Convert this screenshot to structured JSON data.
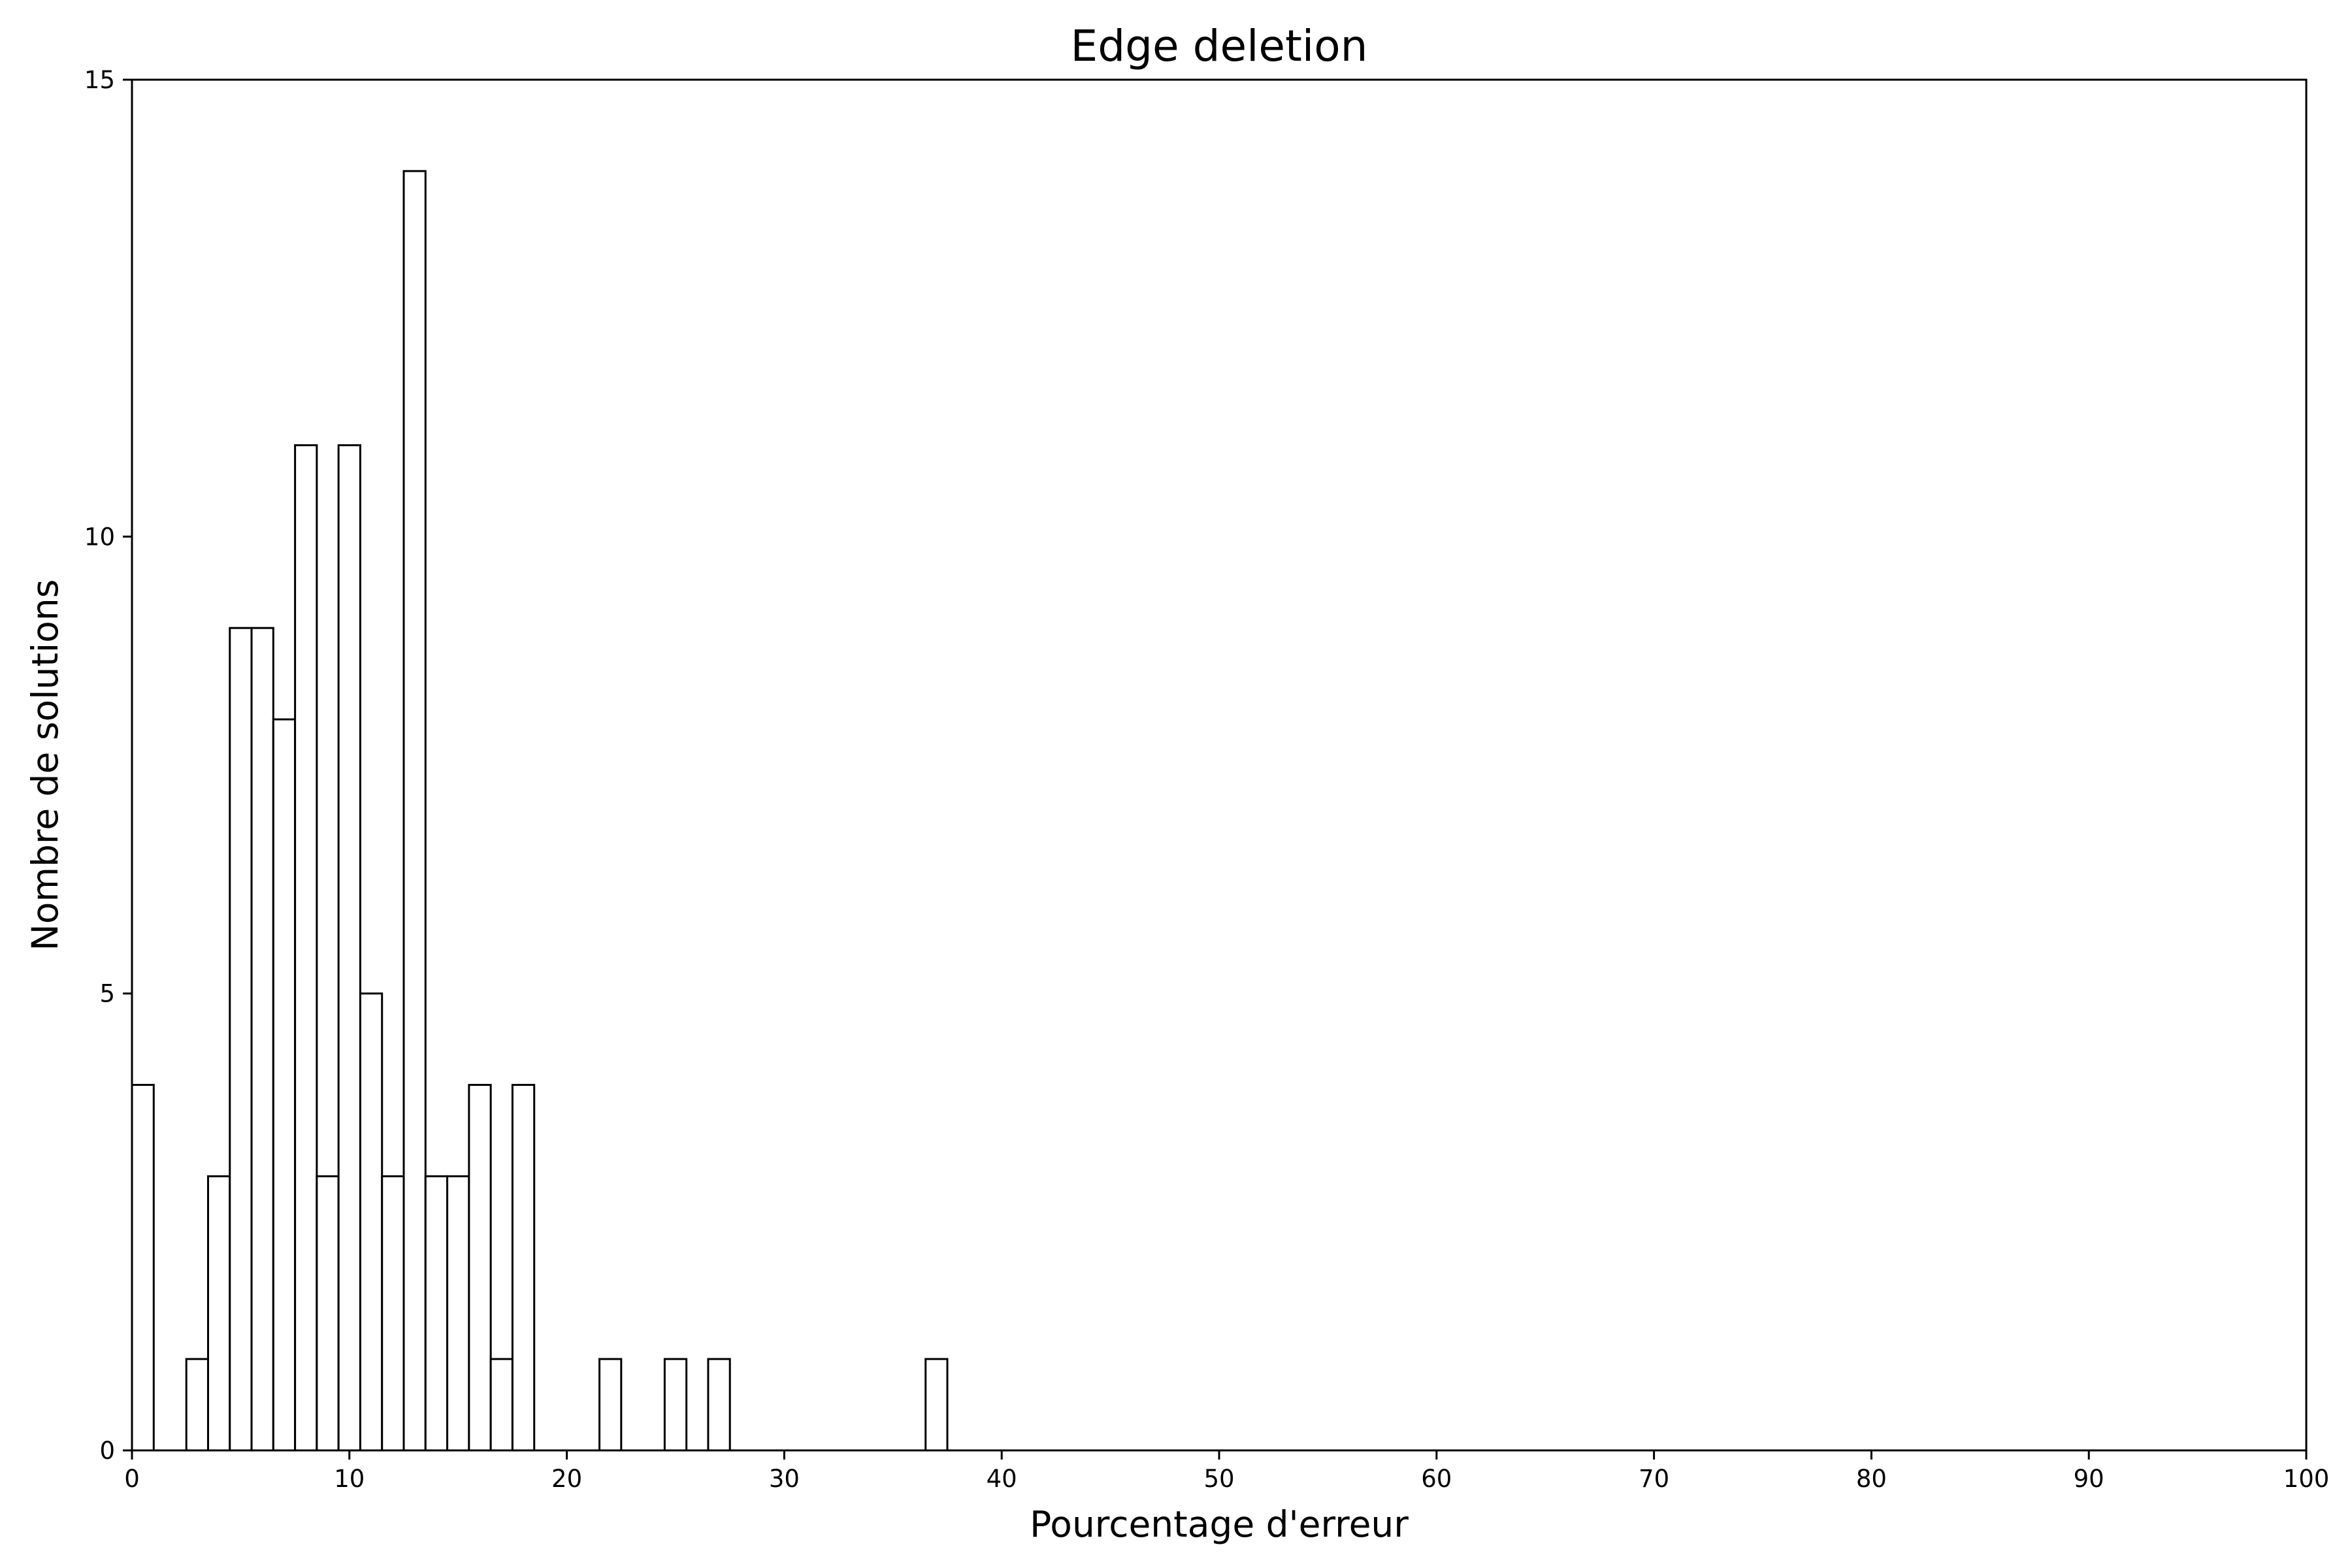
{
  "chart_data": {
    "type": "bar",
    "subtype": "histogram-step",
    "title": "Edge deletion",
    "xlabel": "Pourcentage d'erreur",
    "ylabel": "Nombre de solutions",
    "xlim": [
      0,
      100
    ],
    "ylim": [
      0,
      15
    ],
    "xticks": [
      0,
      10,
      20,
      30,
      40,
      50,
      60,
      70,
      80,
      90,
      100
    ],
    "yticks": [
      0,
      5,
      10,
      15
    ],
    "bin_width": 1,
    "bins": [
      {
        "x0": 0,
        "x1": 1,
        "value": 4
      },
      {
        "x0": 2.5,
        "x1": 3.5,
        "value": 1
      },
      {
        "x0": 3.5,
        "x1": 4.5,
        "value": 3
      },
      {
        "x0": 4.5,
        "x1": 5.5,
        "value": 9
      },
      {
        "x0": 5.5,
        "x1": 6.5,
        "value": 9
      },
      {
        "x0": 6.5,
        "x1": 7.5,
        "value": 8
      },
      {
        "x0": 7.5,
        "x1": 8.5,
        "value": 11
      },
      {
        "x0": 8.5,
        "x1": 9.5,
        "value": 3
      },
      {
        "x0": 9.5,
        "x1": 10.5,
        "value": 11
      },
      {
        "x0": 10.5,
        "x1": 11.5,
        "value": 5
      },
      {
        "x0": 11.5,
        "x1": 12.5,
        "value": 3
      },
      {
        "x0": 12.5,
        "x1": 13.5,
        "value": 14
      },
      {
        "x0": 13.5,
        "x1": 14.5,
        "value": 3
      },
      {
        "x0": 14.5,
        "x1": 15.5,
        "value": 3
      },
      {
        "x0": 15.5,
        "x1": 16.5,
        "value": 4
      },
      {
        "x0": 16.5,
        "x1": 17.5,
        "value": 1
      },
      {
        "x0": 17.5,
        "x1": 18.5,
        "value": 4
      },
      {
        "x0": 21.5,
        "x1": 22.5,
        "value": 1
      },
      {
        "x0": 24.5,
        "x1": 25.5,
        "value": 1
      },
      {
        "x0": 26.5,
        "x1": 27.5,
        "value": 1
      },
      {
        "x0": 36.5,
        "x1": 37.5,
        "value": 1
      }
    ],
    "grid": false,
    "bar_fill": "#ffffff",
    "bar_stroke": "#000000"
  }
}
